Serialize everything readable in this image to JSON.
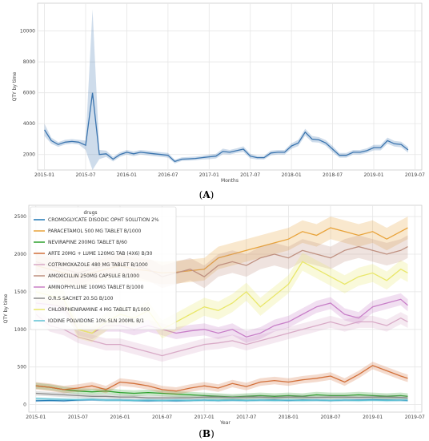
{
  "panels": [
    {
      "label_open": "(",
      "label_letter": "A",
      "label_close": ")"
    },
    {
      "label_open": "(",
      "label_letter": "B",
      "label_close": ")"
    }
  ],
  "chart_data": [
    {
      "type": "line",
      "xlabel": "Months",
      "ylabel": "QTY by time",
      "x_ticks": [
        "2015-01",
        "2015-07",
        "2016-01",
        "2016-07",
        "2017-01",
        "2017-07",
        "2018-01",
        "2018-07",
        "2019-01",
        "2019-07"
      ],
      "y_ticks": [
        2000,
        4000,
        6000,
        8000,
        10000
      ],
      "ylim": [
        1000,
        11800
      ],
      "x_range": [
        "2014-12",
        "2019-08"
      ],
      "grid": true,
      "color": "#3b75af",
      "series": [
        {
          "x": [
            "2015-01",
            "2015-02",
            "2015-03",
            "2015-04",
            "2015-05",
            "2015-06",
            "2015-07",
            "2015-08",
            "2015-09",
            "2015-10",
            "2015-11",
            "2015-12",
            "2016-01",
            "2016-02",
            "2016-03",
            "2016-04",
            "2016-05",
            "2016-06",
            "2016-07",
            "2016-08",
            "2016-09",
            "2016-10",
            "2016-11",
            "2016-12",
            "2017-01",
            "2017-02",
            "2017-03",
            "2017-04",
            "2017-05",
            "2017-06",
            "2017-07",
            "2017-08",
            "2017-09",
            "2017-10",
            "2017-11",
            "2017-12",
            "2018-01",
            "2018-02",
            "2018-03",
            "2018-04",
            "2018-05",
            "2018-06",
            "2018-07",
            "2018-08",
            "2018-09",
            "2018-10",
            "2018-11",
            "2018-12",
            "2019-01",
            "2019-02",
            "2019-03",
            "2019-04",
            "2019-05",
            "2019-06"
          ],
          "values": [
            3600,
            2900,
            2650,
            2800,
            2850,
            2800,
            2600,
            6000,
            2000,
            2050,
            1700,
            2000,
            2150,
            2050,
            2150,
            2100,
            2050,
            2000,
            1950,
            1550,
            1700,
            1720,
            1750,
            1800,
            1850,
            1900,
            2200,
            2150,
            2250,
            2350,
            1900,
            1800,
            1800,
            2100,
            2150,
            2150,
            2550,
            2750,
            3450,
            3000,
            2950,
            2750,
            2350,
            1950,
            1950,
            2150,
            2150,
            2250,
            2450,
            2450,
            2900,
            2700,
            2650,
            2300
          ],
          "ci_halfwidth": [
            400,
            200,
            150,
            150,
            150,
            150,
            300,
            5400,
            300,
            200,
            150,
            150,
            150,
            150,
            150,
            150,
            150,
            150,
            150,
            120,
            120,
            120,
            120,
            120,
            150,
            150,
            180,
            150,
            150,
            180,
            150,
            120,
            120,
            150,
            150,
            150,
            180,
            200,
            220,
            200,
            180,
            180,
            200,
            150,
            150,
            150,
            150,
            150,
            180,
            180,
            200,
            180,
            180,
            180
          ]
        }
      ]
    },
    {
      "type": "line",
      "xlabel": "Year",
      "ylabel": "QTY by time",
      "legend_title": "drugs",
      "legend_position": "top-left",
      "x_ticks": [
        "2015-01",
        "2015-07",
        "2016-01",
        "2016-07",
        "2017-01",
        "2017-07",
        "2018-01",
        "2018-07",
        "2019-01",
        "2019-07"
      ],
      "y_ticks": [
        0,
        500,
        1000,
        1500,
        2000,
        2500
      ],
      "ylim": [
        -100,
        2650
      ],
      "x_range": [
        "2014-12",
        "2019-08"
      ],
      "grid": true,
      "x_months": [
        "2015-01",
        "2015-03",
        "2015-05",
        "2015-07",
        "2015-09",
        "2015-11",
        "2016-01",
        "2016-03",
        "2016-05",
        "2016-07",
        "2016-09",
        "2016-11",
        "2017-01",
        "2017-03",
        "2017-05",
        "2017-07",
        "2017-09",
        "2017-11",
        "2018-01",
        "2018-03",
        "2018-05",
        "2018-07",
        "2018-09",
        "2018-11",
        "2019-01",
        "2019-03",
        "2019-05",
        "2019-06"
      ],
      "series": [
        {
          "name": "CROMOGLYCATE DISODIC OPHT SOLUTION 2%",
          "color": "#1f77b4",
          "ci": 15,
          "values": [
            50,
            55,
            50,
            60,
            65,
            60,
            60,
            55,
            50,
            55,
            50,
            55,
            60,
            55,
            60,
            55,
            60,
            60,
            55,
            60,
            60,
            55,
            60,
            60,
            65,
            60,
            60,
            55
          ]
        },
        {
          "name": "PARACETAMOL 500 MG TABLET B/1000",
          "color": "#e8a33a",
          "ci": 150,
          "values": [
            1850,
            1800,
            1750,
            1700,
            1750,
            1800,
            1850,
            1800,
            1780,
            1750,
            1760,
            1780,
            1800,
            1950,
            2000,
            2050,
            2100,
            2150,
            2200,
            2300,
            2250,
            2350,
            2300,
            2250,
            2300,
            2200,
            2300,
            2350
          ]
        },
        {
          "name": "NEVIRAPINE 200MG TABLET B/60",
          "color": "#2ca02c",
          "ci": 40,
          "values": [
            250,
            230,
            200,
            180,
            170,
            180,
            160,
            150,
            160,
            150,
            140,
            130,
            120,
            110,
            100,
            110,
            120,
            110,
            120,
            110,
            130,
            120,
            120,
            130,
            120,
            110,
            120,
            110
          ]
        },
        {
          "name": "ARTE 20MG + LUME 120MG TAB (4X6) B/30",
          "color": "#d2703a",
          "ci": 50,
          "values": [
            250,
            230,
            200,
            220,
            250,
            200,
            300,
            280,
            250,
            200,
            180,
            220,
            250,
            220,
            280,
            240,
            300,
            320,
            300,
            330,
            350,
            380,
            300,
            400,
            520,
            450,
            380,
            350
          ]
        },
        {
          "name": "COTRIMOXAZOLE 480 MG TABLET B/1000",
          "color": "#d8a9c6",
          "ci": 80,
          "values": [
            1200,
            1050,
            1000,
            900,
            850,
            800,
            800,
            750,
            700,
            650,
            700,
            750,
            800,
            820,
            850,
            800,
            850,
            900,
            950,
            1000,
            1050,
            1100,
            1050,
            1100,
            1100,
            1050,
            1150,
            1100
          ]
        },
        {
          "name": "AMOXICILLIN 250MG CAPSULE B/1000",
          "color": "#bf9080",
          "ci": 150,
          "values": [
            1900,
            1850,
            1800,
            1750,
            1800,
            1850,
            1900,
            1850,
            1800,
            1700,
            1750,
            1800,
            1700,
            1850,
            1900,
            1850,
            1950,
            2000,
            1950,
            2050,
            2000,
            1950,
            2050,
            2100,
            2050,
            2000,
            2050,
            2100
          ]
        },
        {
          "name": "AMINOPHYLLINE 100MG TABLET B/1000",
          "color": "#c87fc8",
          "ci": 80,
          "values": [
            1350,
            1330,
            1300,
            1000,
            950,
            1050,
            1050,
            1000,
            1050,
            1000,
            950,
            980,
            1000,
            950,
            1000,
            900,
            950,
            1050,
            1100,
            1200,
            1300,
            1350,
            1200,
            1150,
            1300,
            1350,
            1400,
            1320
          ]
        },
        {
          "name": "O.R.S SACHET 20.5G B/100",
          "color": "#8c8c8c",
          "ci": 30,
          "values": [
            150,
            140,
            130,
            120,
            110,
            110,
            100,
            100,
            90,
            90,
            90,
            90,
            100,
            100,
            95,
            100,
            100,
            95,
            100,
            100,
            95,
            100,
            100,
            95,
            100,
            100,
            95,
            90
          ]
        },
        {
          "name": "CHLORPHENIRAMINE 4 MG TABLET B/1000",
          "color": "#e9e76a",
          "ci": 120,
          "values": [
            1500,
            1450,
            1400,
            1000,
            950,
            1100,
            1200,
            1150,
            1250,
            1000,
            1100,
            1200,
            1300,
            1250,
            1350,
            1500,
            1300,
            1450,
            1600,
            1900,
            1800,
            1700,
            1600,
            1700,
            1750,
            1650,
            1800,
            1750
          ]
        },
        {
          "name": "IODINE POLVIDONE 10%  SLN 200ML B/1",
          "color": "#5ec2d4",
          "ci": 20,
          "values": [
            80,
            75,
            70,
            65,
            70,
            60,
            60,
            55,
            60,
            55,
            60,
            55,
            60,
            55,
            60,
            55,
            60,
            55,
            60,
            55,
            60,
            55,
            60,
            55,
            60,
            55,
            60,
            60
          ]
        }
      ]
    }
  ]
}
